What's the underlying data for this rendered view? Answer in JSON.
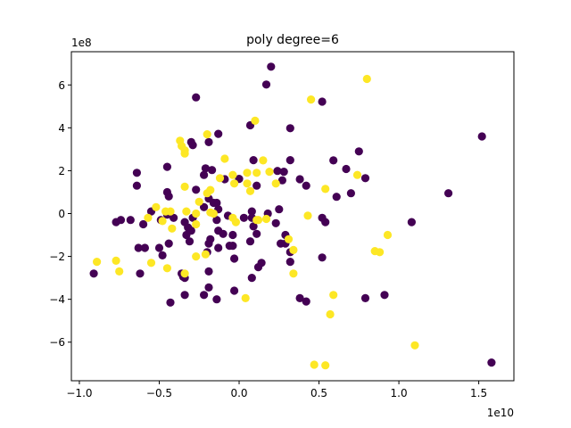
{
  "chart_data": {
    "type": "scatter",
    "title": "poly degree=6",
    "xlabel": "",
    "ylabel": "",
    "x_offset_text": "1e10",
    "y_offset_text": "1e8",
    "xlim": [
      -1.05,
      1.72
    ],
    "ylim": [
      -7.8,
      7.55
    ],
    "x_ticks": [
      -1.0,
      -0.5,
      0.0,
      0.5,
      1.0,
      1.5
    ],
    "x_tick_labels": [
      "−1.0",
      "−0.5",
      "0.0",
      "0.5",
      "1.0",
      "1.5"
    ],
    "y_ticks": [
      -6,
      -4,
      -2,
      0,
      2,
      4,
      6
    ],
    "y_tick_labels": [
      "−6",
      "−4",
      "−2",
      "0",
      "2",
      "4",
      "6"
    ],
    "grid": false,
    "colors": {
      "class0": "#440154",
      "class1": "#fde725"
    },
    "series": [
      {
        "color": "#440154",
        "points": [
          [
            0.2,
            6.85
          ],
          [
            0.17,
            6.02
          ],
          [
            0.52,
            5.22
          ],
          [
            -0.27,
            5.42
          ],
          [
            -0.13,
            3.72
          ],
          [
            0.07,
            4.12
          ],
          [
            0.32,
            3.98
          ],
          [
            -0.3,
            3.33
          ],
          [
            -0.29,
            3.19
          ],
          [
            -0.19,
            3.33
          ],
          [
            1.52,
            3.6
          ],
          [
            0.75,
            2.9
          ],
          [
            0.59,
            2.48
          ],
          [
            0.09,
            2.49
          ],
          [
            -0.45,
            2.18
          ],
          [
            -0.21,
            2.11
          ],
          [
            -0.17,
            2.03
          ],
          [
            0.67,
            2.08
          ],
          [
            0.79,
            1.65
          ],
          [
            0.32,
            2.49
          ],
          [
            0.24,
            1.99
          ],
          [
            0.28,
            1.95
          ],
          [
            -0.64,
            1.9
          ],
          [
            -0.22,
            1.8
          ],
          [
            -0.09,
            1.6
          ],
          [
            0.0,
            1.62
          ],
          [
            0.11,
            1.3
          ],
          [
            0.27,
            1.55
          ],
          [
            -0.64,
            1.3
          ],
          [
            -0.45,
            1.0
          ],
          [
            -0.44,
            0.8
          ],
          [
            -0.27,
            1.11
          ],
          [
            -0.19,
            0.7
          ],
          [
            -0.14,
            0.5
          ],
          [
            -0.16,
            0.5
          ],
          [
            0.38,
            1.6
          ],
          [
            0.42,
            1.3
          ],
          [
            0.7,
            0.95
          ],
          [
            0.61,
            0.78
          ],
          [
            1.31,
            0.95
          ],
          [
            -0.22,
            0.3
          ],
          [
            -0.13,
            0.2
          ],
          [
            0.08,
            0.1
          ],
          [
            0.18,
            0.0
          ],
          [
            0.25,
            0.2
          ],
          [
            -0.55,
            0.1
          ],
          [
            -0.45,
            -0.05
          ],
          [
            -0.41,
            -0.2
          ],
          [
            -0.49,
            -0.3
          ],
          [
            -0.29,
            -0.2
          ],
          [
            -0.14,
            -0.3
          ],
          [
            -0.07,
            -0.1
          ],
          [
            0.03,
            -0.2
          ],
          [
            0.08,
            -0.2
          ],
          [
            -0.77,
            -0.4
          ],
          [
            -0.74,
            -0.3
          ],
          [
            -0.68,
            -0.3
          ],
          [
            -0.6,
            -0.5
          ],
          [
            -0.34,
            -0.4
          ],
          [
            -0.32,
            -0.65
          ],
          [
            -0.3,
            -0.8
          ],
          [
            -0.13,
            -0.8
          ],
          [
            -0.18,
            -1.2
          ],
          [
            -0.1,
            -0.95
          ],
          [
            -0.04,
            -1.0
          ],
          [
            -0.06,
            -1.5
          ],
          [
            0.09,
            -0.6
          ],
          [
            0.11,
            -0.95
          ],
          [
            0.23,
            -0.45
          ],
          [
            0.29,
            -1.0
          ],
          [
            0.29,
            -1.4
          ],
          [
            0.54,
            -0.4
          ],
          [
            0.52,
            -0.2
          ],
          [
            1.08,
            -0.4
          ],
          [
            -0.59,
            -1.6
          ],
          [
            -0.63,
            -1.6
          ],
          [
            -0.5,
            -1.6
          ],
          [
            -0.48,
            -1.95
          ],
          [
            -0.44,
            -1.4
          ],
          [
            -0.33,
            -1.0
          ],
          [
            -0.31,
            -1.3
          ],
          [
            -0.2,
            -1.8
          ],
          [
            -0.19,
            -1.4
          ],
          [
            -0.13,
            -1.6
          ],
          [
            -0.04,
            -1.5
          ],
          [
            -0.03,
            -2.1
          ],
          [
            0.07,
            -1.3
          ],
          [
            0.14,
            -2.3
          ],
          [
            0.12,
            -2.5
          ],
          [
            0.08,
            -3.0
          ],
          [
            0.26,
            -1.4
          ],
          [
            0.32,
            -1.8
          ],
          [
            0.32,
            -2.25
          ],
          [
            0.52,
            -2.05
          ],
          [
            -0.91,
            -2.8
          ],
          [
            -0.62,
            -2.8
          ],
          [
            -0.36,
            -2.8
          ],
          [
            -0.35,
            -2.95
          ],
          [
            -0.34,
            -3.0
          ],
          [
            -0.19,
            -2.7
          ],
          [
            -0.19,
            -3.45
          ],
          [
            -0.34,
            -3.8
          ],
          [
            -0.22,
            -3.8
          ],
          [
            -0.14,
            -4.0
          ],
          [
            -0.03,
            -3.6
          ],
          [
            -0.43,
            -4.15
          ],
          [
            0.38,
            -3.95
          ],
          [
            0.42,
            -4.1
          ],
          [
            0.79,
            -3.95
          ],
          [
            0.91,
            -3.8
          ],
          [
            1.58,
            -6.95
          ]
        ]
      },
      {
        "color": "#fde725",
        "points": [
          [
            0.8,
            6.28
          ],
          [
            0.45,
            5.32
          ],
          [
            0.1,
            4.33
          ],
          [
            -0.2,
            3.7
          ],
          [
            -0.37,
            3.4
          ],
          [
            -0.36,
            3.15
          ],
          [
            -0.34,
            2.95
          ],
          [
            -0.34,
            2.8
          ],
          [
            -0.09,
            2.56
          ],
          [
            0.15,
            2.48
          ],
          [
            0.05,
            1.9
          ],
          [
            0.19,
            1.95
          ],
          [
            0.11,
            1.9
          ],
          [
            -0.12,
            1.65
          ],
          [
            -0.04,
            1.8
          ],
          [
            -0.03,
            1.4
          ],
          [
            0.05,
            1.4
          ],
          [
            0.23,
            1.4
          ],
          [
            0.07,
            1.05
          ],
          [
            0.74,
            1.8
          ],
          [
            0.54,
            1.15
          ],
          [
            -0.18,
            1.1
          ],
          [
            -0.34,
            1.25
          ],
          [
            -0.2,
            0.95
          ],
          [
            -0.25,
            0.55
          ],
          [
            -0.33,
            0.1
          ],
          [
            -0.18,
            0.05
          ],
          [
            -0.27,
            0.0
          ],
          [
            -0.16,
            0.0
          ],
          [
            -0.52,
            0.3
          ],
          [
            -0.46,
            0.1
          ],
          [
            -0.43,
            0.1
          ],
          [
            -0.57,
            -0.2
          ],
          [
            -0.48,
            -0.35
          ],
          [
            -0.42,
            -0.7
          ],
          [
            -0.27,
            -0.5
          ],
          [
            -0.04,
            -0.2
          ],
          [
            -0.02,
            -0.4
          ],
          [
            0.11,
            -0.3
          ],
          [
            0.17,
            -0.25
          ],
          [
            0.12,
            -0.3
          ],
          [
            0.43,
            -0.1
          ],
          [
            0.31,
            -1.2
          ],
          [
            0.34,
            -1.7
          ],
          [
            0.93,
            -1.0
          ],
          [
            0.85,
            -1.75
          ],
          [
            0.88,
            -1.8
          ],
          [
            -0.55,
            -2.3
          ],
          [
            -0.21,
            -1.9
          ],
          [
            -0.27,
            -2.0
          ],
          [
            -0.89,
            -2.25
          ],
          [
            -0.77,
            -2.2
          ],
          [
            -0.75,
            -2.7
          ],
          [
            -0.45,
            -2.55
          ],
          [
            -0.34,
            -2.8
          ],
          [
            0.34,
            -2.8
          ],
          [
            0.59,
            -3.8
          ],
          [
            0.04,
            -3.95
          ],
          [
            0.57,
            -4.7
          ],
          [
            1.1,
            -6.15
          ],
          [
            0.47,
            -7.05
          ],
          [
            0.54,
            -7.08
          ]
        ]
      }
    ]
  }
}
